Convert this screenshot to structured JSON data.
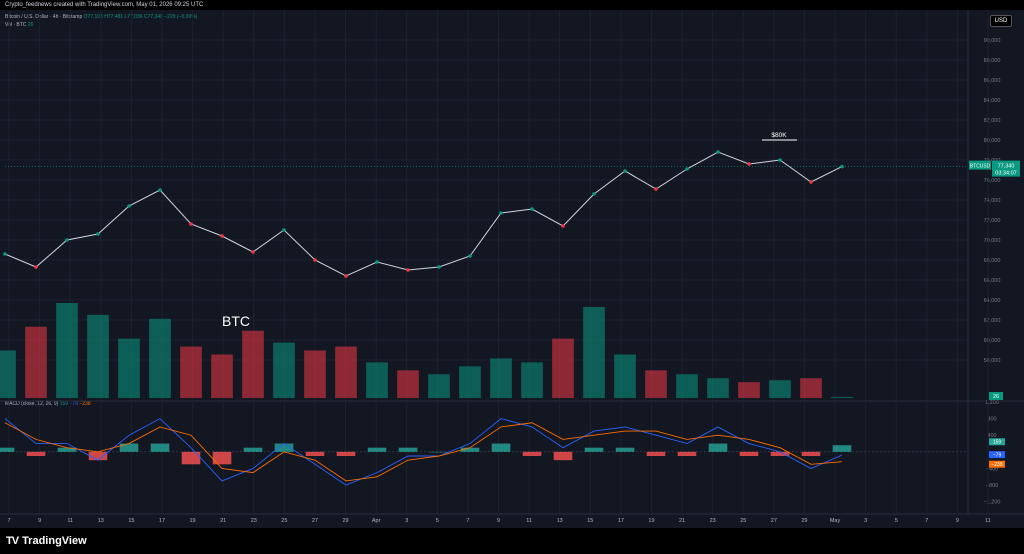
{
  "header": {
    "credit": "Crypto_feednews created with TradingView.com, May 01, 2026 09:25 UTC"
  },
  "legend": {
    "symbol": "Bitcoin / U.S. Dollar · 4h · Bitstamp",
    "ohlc": "O77,103 H77,481 L77,036 C77,340 −229 (−0.30%)",
    "volume_label": "Vol · BTC",
    "volume_value": "26",
    "macd_label": "MACD (close, 12, 26, 9)",
    "macd_hist": "159",
    "macd_line": "−79",
    "macd_signal": "−238"
  },
  "currency_button": "USD",
  "price_tag": {
    "symbol": "BTCUSD",
    "price": "77,340",
    "countdown": "03:34:07"
  },
  "annotations": {
    "chart_label": "BTC",
    "level_label": "$80K"
  },
  "volume_tag": "26",
  "macd_tags": {
    "hist": "159",
    "line": "−79",
    "signal": "−238"
  },
  "colors": {
    "up": "#089981",
    "down": "#f23645",
    "macd_line": "#2962ff",
    "signal_line": "#ff6d00",
    "background": "#131722"
  },
  "footer": {
    "brand": "TradingView"
  },
  "chart_data": [
    {
      "type": "line",
      "title": "Bitcoin / U.S. Dollar · 4h · Bitstamp",
      "x": [
        "Mar 7",
        "Mar 9",
        "Mar 11",
        "Mar 13",
        "Mar 15",
        "Mar 17",
        "Mar 19",
        "Mar 21",
        "Mar 23",
        "Mar 25",
        "Mar 27",
        "Mar 29",
        "Apr 1",
        "Apr 3",
        "Apr 5",
        "Apr 7",
        "Apr 9",
        "Apr 11",
        "Apr 13",
        "Apr 15",
        "Apr 17",
        "Apr 19",
        "Apr 21",
        "Apr 23",
        "Apr 25",
        "Apr 27",
        "Apr 29",
        "May 1"
      ],
      "series": [
        {
          "values": [
            68600,
            67300,
            70000,
            70600,
            73400,
            75000,
            71600,
            70400,
            68800,
            71000,
            68000,
            66400,
            67800,
            67000,
            67300,
            68400,
            72700,
            73100,
            71400,
            74600,
            76900,
            75100,
            77100,
            78800,
            77600,
            78000,
            75800,
            77340
          ]
        }
      ],
      "ylim": [
        54000,
        92000
      ],
      "y_ticks": [
        "58,000",
        "60,000",
        "62,000",
        "64,000",
        "66,000",
        "68,000",
        "70,000",
        "72,000",
        "74,000",
        "76,000",
        "78,000",
        "80,000",
        "82,000",
        "84,000",
        "86,000",
        "88,000",
        "90,000"
      ],
      "x_ticks": [
        "7",
        "9",
        "11",
        "13",
        "15",
        "17",
        "19",
        "21",
        "23",
        "25",
        "27",
        "29",
        "Apr",
        "3",
        "5",
        "7",
        "9",
        "11",
        "13",
        "15",
        "17",
        "19",
        "21",
        "23",
        "25",
        "27",
        "29",
        "May",
        "3",
        "5",
        "7",
        "9",
        "11"
      ],
      "grid": true
    },
    {
      "type": "bar",
      "title": "Vol · BTC",
      "x": [
        "Mar 7",
        "Mar 9",
        "Mar 11",
        "Mar 13",
        "Mar 15",
        "Mar 17",
        "Mar 19",
        "Mar 21",
        "Mar 23",
        "Mar 25",
        "Mar 27",
        "Mar 29",
        "Apr 1",
        "Apr 3",
        "Apr 5",
        "Apr 7",
        "Apr 9",
        "Apr 11",
        "Apr 13",
        "Apr 15",
        "Apr 17",
        "Apr 19",
        "Apr 21",
        "Apr 23",
        "Apr 25",
        "Apr 27",
        "Apr 29",
        "May 1"
      ],
      "values": [
        1200,
        1800,
        2400,
        2100,
        1500,
        2000,
        1300,
        1100,
        1700,
        1400,
        1200,
        1300,
        900,
        700,
        600,
        800,
        1000,
        900,
        1500,
        2300,
        1100,
        700,
        600,
        500,
        400,
        450,
        500,
        26
      ]
    },
    {
      "type": "line",
      "title": "MACD (close, 12, 26, 9)",
      "x": [
        "Mar 7",
        "Mar 9",
        "Mar 11",
        "Mar 13",
        "Mar 15",
        "Mar 17",
        "Mar 19",
        "Mar 21",
        "Mar 23",
        "Mar 25",
        "Mar 27",
        "Mar 29",
        "Apr 1",
        "Apr 3",
        "Apr 5",
        "Apr 7",
        "Apr 9",
        "Apr 11",
        "Apr 13",
        "Apr 15",
        "Apr 17",
        "Apr 19",
        "Apr 21",
        "Apr 23",
        "Apr 25",
        "Apr 27",
        "Apr 29",
        "May 1"
      ],
      "series": [
        {
          "name": "MACD",
          "values": [
            800,
            200,
            200,
            -200,
            400,
            800,
            100,
            -700,
            -400,
            200,
            -300,
            -800,
            -500,
            -100,
            -100,
            200,
            800,
            600,
            100,
            500,
            600,
            400,
            200,
            600,
            200,
            0,
            -400,
            -79
          ]
        },
        {
          "name": "Signal",
          "values": [
            700,
            300,
            100,
            0,
            200,
            600,
            400,
            -400,
            -500,
            0,
            -200,
            -700,
            -600,
            -200,
            -100,
            100,
            600,
            700,
            300,
            400,
            500,
            500,
            300,
            400,
            300,
            100,
            -300,
            -238
          ]
        },
        {
          "name": "Histogram",
          "values": [
            100,
            -100,
            100,
            -200,
            200,
            200,
            -300,
            -300,
            100,
            200,
            -100,
            -100,
            100,
            100,
            0,
            100,
            200,
            -100,
            -200,
            100,
            100,
            -100,
            -100,
            200,
            -100,
            -100,
            -100,
            159
          ]
        }
      ],
      "ylim": [
        -1400,
        1200
      ],
      "y_ticks": [
        "1,200",
        "800",
        "400",
        "−400",
        "−800",
        "−1,200"
      ]
    }
  ]
}
